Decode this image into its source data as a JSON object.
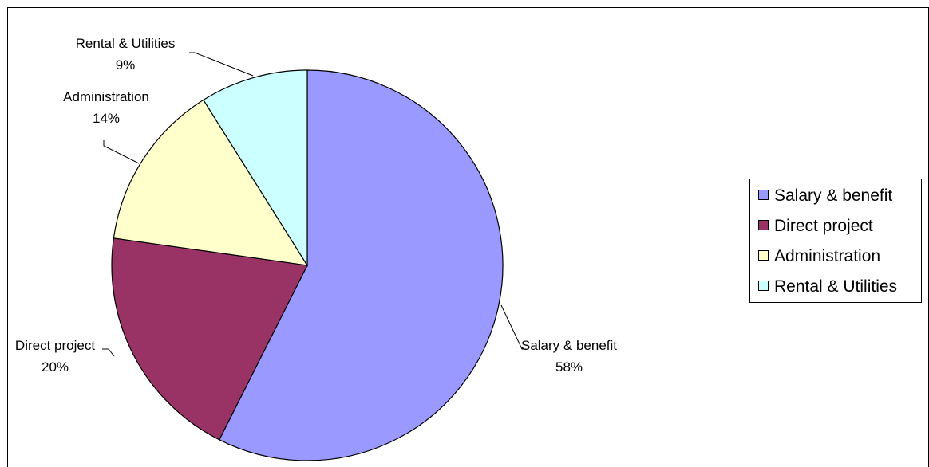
{
  "chart_data": {
    "type": "pie",
    "title": "",
    "start_angle_deg": 0,
    "direction": "clockwise",
    "slices": [
      {
        "name": "Salary & benefit",
        "value": 58,
        "label": "58%",
        "color": "#9999FF"
      },
      {
        "name": "Direct project",
        "value": 20,
        "label": "20%",
        "color": "#993366"
      },
      {
        "name": "Administration",
        "value": 14,
        "label": "14%",
        "color": "#FFFFCC"
      },
      {
        "name": "Rental & Utilities",
        "value": 9,
        "label": "9%",
        "color": "#CCFFFF"
      }
    ],
    "legend": {
      "placement": "right",
      "entries": [
        "Salary & benefit",
        "Direct project",
        "Administration",
        "Rental & Utilities"
      ]
    }
  }
}
